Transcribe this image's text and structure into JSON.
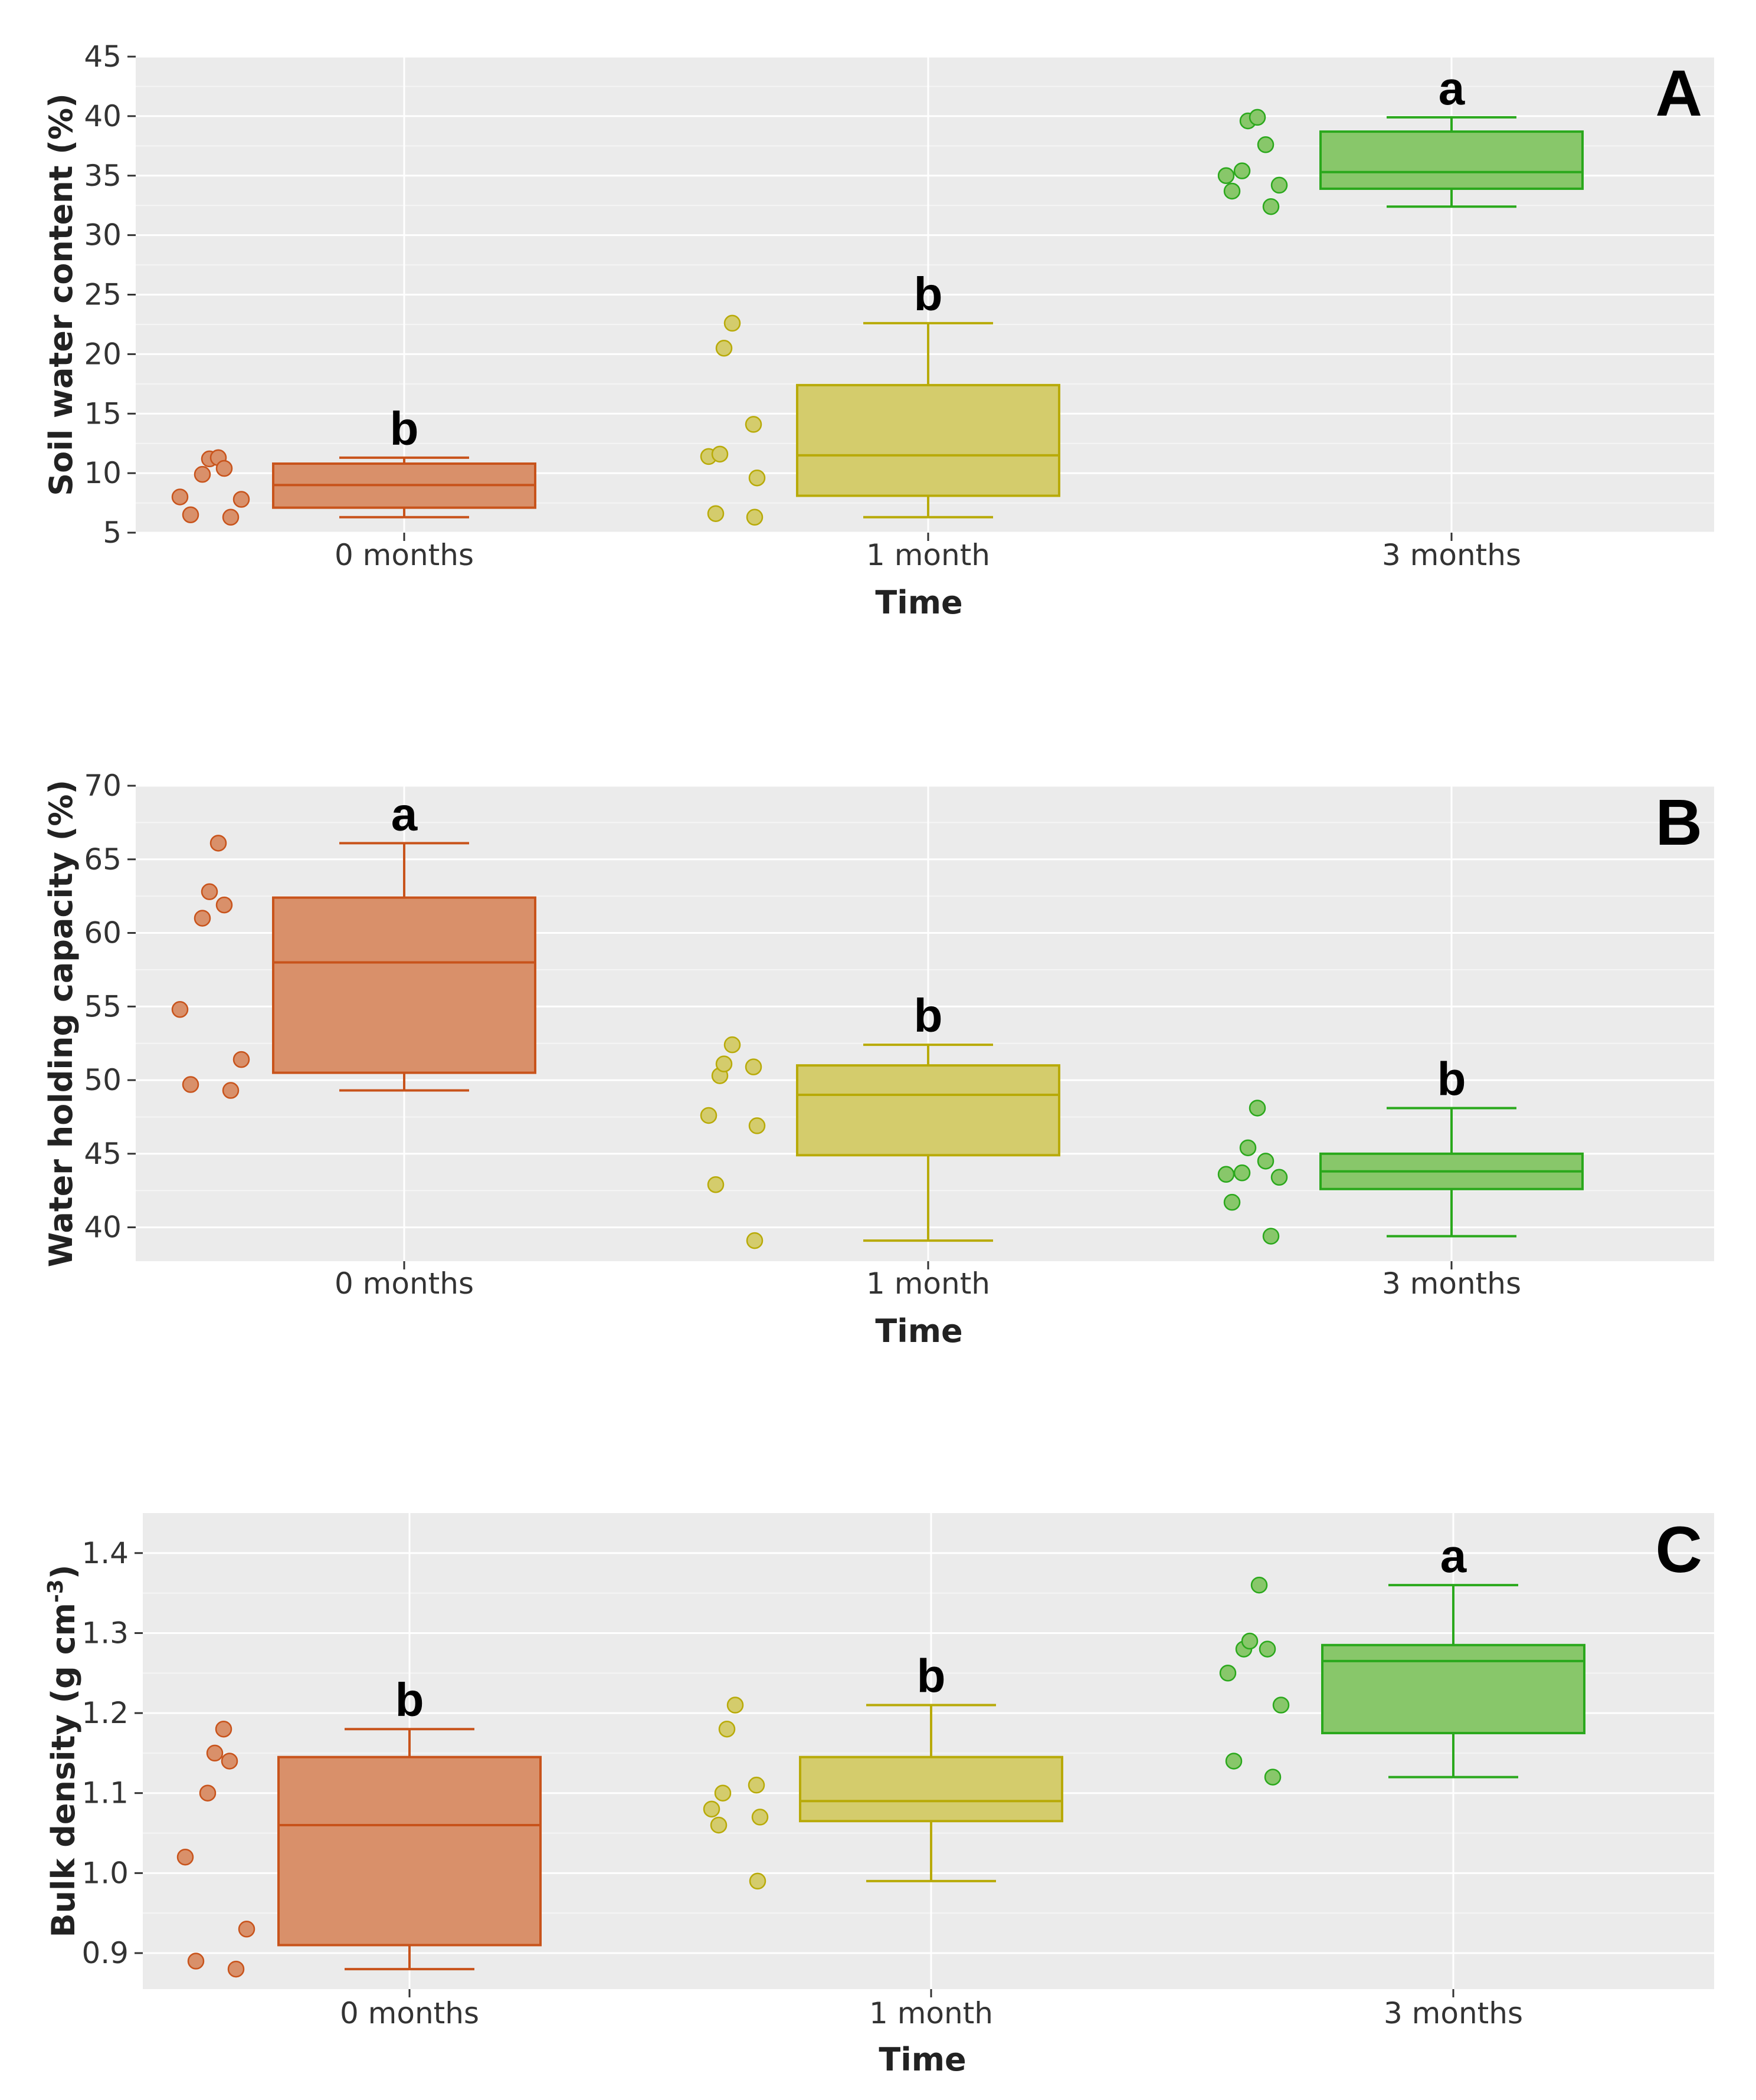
{
  "chart_data": [
    {
      "type": "boxplot",
      "panel_label": "A",
      "ylabel": "Soil water content (%)",
      "xlabel": "Time",
      "categories": [
        "0 months",
        "1 month",
        "3 months"
      ],
      "ylim": [
        5,
        45
      ],
      "yticks": [
        5,
        10,
        15,
        20,
        25,
        30,
        35,
        40,
        45
      ],
      "boxes": [
        {
          "min": 6.3,
          "q1": 7.1,
          "median": 9.0,
          "q3": 10.8,
          "max": 11.3,
          "letter": "b"
        },
        {
          "min": 6.3,
          "q1": 8.1,
          "median": 11.5,
          "q3": 17.4,
          "max": 22.6,
          "letter": "b"
        },
        {
          "min": 32.4,
          "q1": 33.9,
          "median": 35.3,
          "q3": 38.7,
          "max": 39.9,
          "letter": "a"
        }
      ],
      "points": [
        [
          8.0,
          6.5,
          9.9,
          11.2,
          11.3,
          10.4,
          6.3,
          7.8
        ],
        [
          11.4,
          6.6,
          11.6,
          20.5,
          22.6,
          14.1,
          6.3,
          9.6
        ],
        [
          35.0,
          33.7,
          35.4,
          39.6,
          39.9,
          37.6,
          32.4,
          34.2
        ]
      ]
    },
    {
      "type": "boxplot",
      "panel_label": "B",
      "ylabel": "Water holding capacity (%)",
      "xlabel": "Time",
      "categories": [
        "0 months",
        "1 month",
        "3 months"
      ],
      "ylim": [
        37.7,
        70
      ],
      "yticks": [
        40,
        45,
        50,
        55,
        60,
        65,
        70
      ],
      "boxes": [
        {
          "min": 49.3,
          "q1": 50.5,
          "median": 58.0,
          "q3": 62.4,
          "max": 66.1,
          "letter": "a"
        },
        {
          "min": 39.1,
          "q1": 44.9,
          "median": 49.0,
          "q3": 51.0,
          "max": 52.4,
          "letter": "b"
        },
        {
          "min": 39.4,
          "q1": 42.6,
          "median": 43.8,
          "q3": 45.0,
          "max": 48.1,
          "letter": "b"
        }
      ],
      "points": [
        [
          54.8,
          49.7,
          61.0,
          62.8,
          66.1,
          61.9,
          49.3,
          51.4
        ],
        [
          47.6,
          42.9,
          50.3,
          51.1,
          52.4,
          50.9,
          39.1,
          46.9
        ],
        [
          43.6,
          41.7,
          43.7,
          45.4,
          48.1,
          44.5,
          39.4,
          43.4
        ]
      ]
    },
    {
      "type": "boxplot",
      "panel_label": "C",
      "ylabel": "Bulk density (g cm",
      "ylabel_sup": "-3",
      "ylabel_end": ")",
      "xlabel": "Time",
      "categories": [
        "0 months",
        "1 month",
        "3 months"
      ],
      "ylim": [
        0.855,
        1.45
      ],
      "yticks": [
        0.9,
        1.0,
        1.1,
        1.2,
        1.3,
        1.4
      ],
      "ytick_labels": [
        "0.9",
        "1.0",
        "1.1",
        "1.2",
        "1.3",
        "1.4"
      ],
      "boxes": [
        {
          "min": 0.88,
          "q1": 0.91,
          "median": 1.06,
          "q3": 1.145,
          "max": 1.18,
          "letter": "b"
        },
        {
          "min": 0.99,
          "q1": 1.065,
          "median": 1.09,
          "q3": 1.145,
          "max": 1.21,
          "letter": "b"
        },
        {
          "min": 1.12,
          "q1": 1.175,
          "median": 1.265,
          "q3": 1.285,
          "max": 1.36,
          "letter": "a"
        }
      ],
      "points": [
        [
          1.02,
          0.89,
          1.1,
          1.15,
          1.18,
          1.14,
          0.88,
          0.93
        ],
        [
          1.08,
          1.06,
          1.1,
          1.18,
          1.21,
          1.11,
          0.99,
          1.07
        ],
        [
          1.25,
          1.14,
          1.28,
          1.29,
          1.36,
          1.28,
          1.12,
          1.21
        ]
      ]
    }
  ],
  "colors": {
    "fills": [
      "#d9906a",
      "#d4cc6c",
      "#88c76a"
    ],
    "strokes": [
      "#c8531b",
      "#b8aa08",
      "#2aa81c"
    ],
    "panel_bg": "#ebebeb",
    "grid": "#ffffff"
  }
}
